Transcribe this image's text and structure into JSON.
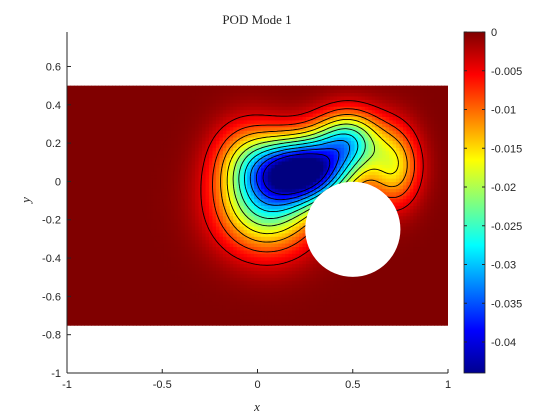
{
  "chart_data": {
    "type": "heatmap",
    "title": "POD Mode 1",
    "xlabel": "x",
    "ylabel": "y",
    "xlim": [
      -1,
      1
    ],
    "ylim": [
      -1,
      0.78
    ],
    "x_ticks": [
      -1,
      -0.5,
      0,
      0.5,
      1
    ],
    "x_tick_labels": [
      "-1",
      "-0.5",
      "0",
      "0.5",
      "1"
    ],
    "y_ticks": [
      0.6,
      0.4,
      0.2,
      0,
      -0.2,
      -0.4,
      -0.6,
      -0.8,
      -1
    ],
    "y_tick_labels": [
      "0.6",
      "0.4",
      "0.2",
      "0",
      "-0.2",
      "-0.4",
      "-0.6",
      "-0.8",
      "-1"
    ],
    "domain": {
      "x": [
        -1,
        1
      ],
      "y": [
        -0.75,
        0.5
      ]
    },
    "cylinder": {
      "center": [
        0.5,
        -0.25
      ],
      "radius": 0.25
    },
    "field_min": {
      "value": -0.044,
      "location": [
        0.25,
        0.06
      ]
    },
    "contour_levels": [
      -0.04,
      -0.036,
      -0.032,
      -0.028,
      -0.024,
      -0.02,
      -0.016,
      -0.012,
      -0.008,
      -0.004
    ],
    "colorbar": {
      "colormap": "jet",
      "clim": [
        -0.044,
        0
      ],
      "ticks": [
        0,
        -0.005,
        -0.01,
        -0.015,
        -0.02,
        -0.025,
        -0.03,
        -0.035,
        -0.04
      ],
      "tick_labels": [
        "0",
        "-0.005",
        "-0.01",
        "-0.015",
        "-0.02",
        "-0.025",
        "-0.03",
        "-0.035",
        "-0.04"
      ]
    },
    "grid": false
  }
}
